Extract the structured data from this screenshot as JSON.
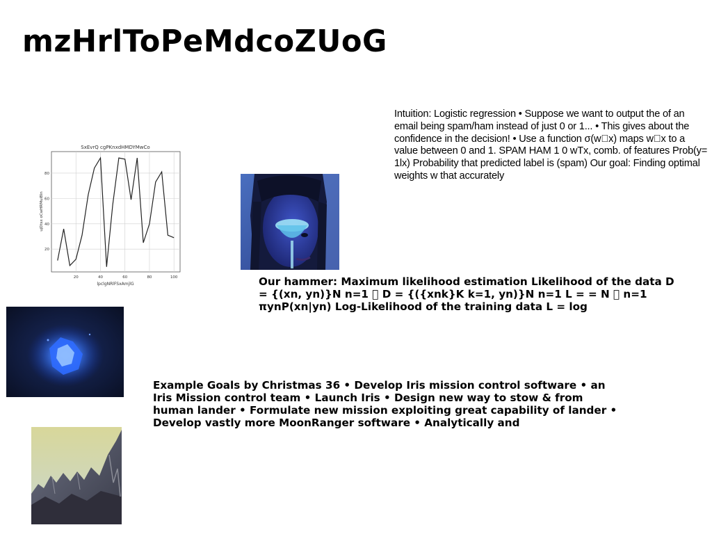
{
  "title": "mzHrlToPeMdcoZUoG",
  "blocks": {
    "intuition": "Intuition: Logistic regression • Suppose we want to output the of an email being spam/ham instead of just 0 or 1... • This gives about the confidence in the decision! • Use a function σ(w\u0000x) maps w\u0000x to a value between 0 and 1. SPAM HAM 1 0 wTx, comb. of features Prob(y= 1lx) Probability that predicted label is (spam) Our goal: Finding optimal weights w that accurately",
    "hammer": "Our hammer: Maximum likelihood estimation Likelihood of the data D = {(xn, yn)}N n=1 \u0000 D = {({xnk}K k=1, yn)}N n=1 L = = N \u0000 n=1 πynP(xn|yn) Log-Likelihood of the training data L = log",
    "goals": "Example Goals by Christmas 36 • Develop Iris mission control software • an Iris Mission control team • Launch Iris • Design new way to stow & from human lander • Formulate new mission exploiting great capability of lander • Develop vastly more MoonRanger software • Analytically and"
  },
  "images": {
    "portrait": "woman-with-glass-photo",
    "glow": "blue-glowing-object-photo",
    "mountain": "rocky-peaks-photo"
  },
  "chart_data": {
    "type": "line",
    "title": "SxEvrQ cgPKnxdHMDYMwCo",
    "xlabel": "lpclgNRlFSxAmjlG",
    "ylabel": "ujDtsx oCwHRMuiBln",
    "x": [
      5,
      10,
      15,
      20,
      25,
      30,
      35,
      40,
      45,
      50,
      55,
      60,
      65,
      70,
      75,
      80,
      85,
      90,
      95,
      100
    ],
    "series": [
      {
        "values": [
          11,
          36,
          7,
          12,
          31,
          63,
          84,
          92,
          6,
          55,
          92,
          91,
          59,
          92,
          25,
          40,
          73,
          81,
          31,
          29
        ]
      }
    ],
    "xticks": [
      20,
      40,
      60,
      80,
      100
    ],
    "yticks": [
      20,
      40,
      60,
      80
    ],
    "xlim": [
      0,
      105
    ],
    "ylim": [
      2,
      97
    ],
    "grid": true,
    "line_color": "#222222"
  }
}
